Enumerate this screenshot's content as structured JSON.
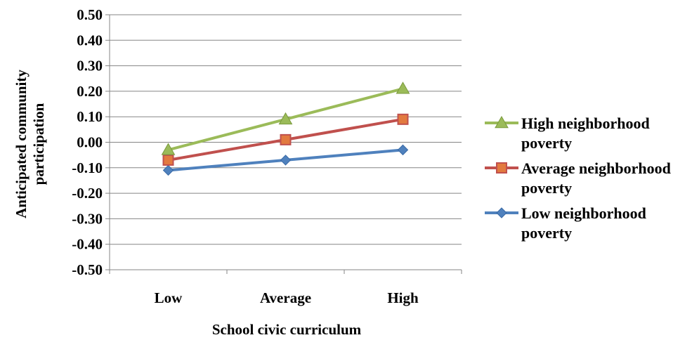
{
  "chart_data": {
    "type": "line",
    "categories": [
      "Low",
      "Average",
      "High"
    ],
    "xlabel": "School civic curriculum",
    "ylabel_lines": [
      "Anticipated community",
      "participation"
    ],
    "ylim": [
      -0.5,
      0.5
    ],
    "yticks": [
      "0.50",
      "0.40",
      "0.30",
      "0.20",
      "0.10",
      "0.00",
      "-0.10",
      "-0.20",
      "-0.30",
      "-0.40",
      "-0.50"
    ],
    "grid": true,
    "legend_position": "right",
    "series": [
      {
        "name_lines": [
          "High neighborhood",
          "poverty"
        ],
        "values": [
          -0.03,
          0.09,
          0.21
        ],
        "color": "#9BBB59",
        "marker": "triangle"
      },
      {
        "name_lines": [
          "Average neighborhood",
          "poverty"
        ],
        "values": [
          -0.07,
          0.01,
          0.09
        ],
        "color": "#C0504D",
        "marker": "square"
      },
      {
        "name_lines": [
          "Low neighborhood",
          "poverty"
        ],
        "values": [
          -0.11,
          -0.07,
          -0.03
        ],
        "color": "#4F81BD",
        "marker": "diamond"
      }
    ]
  }
}
